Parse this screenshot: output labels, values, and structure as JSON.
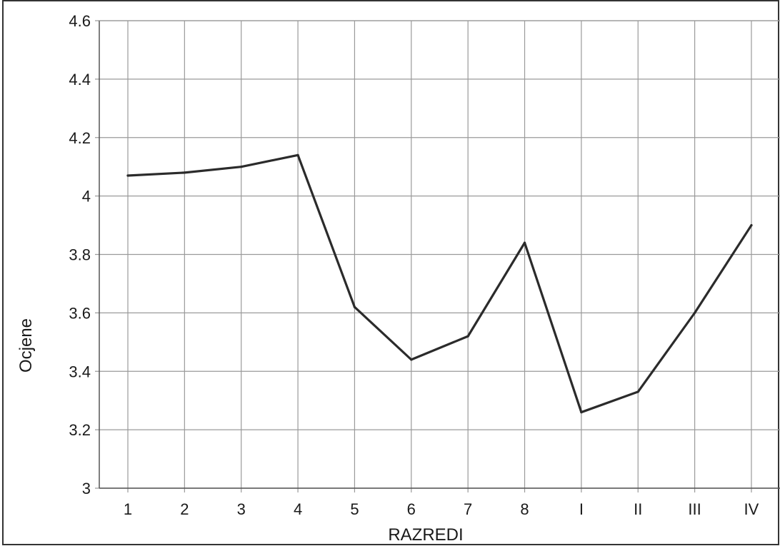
{
  "chart_data": {
    "type": "line",
    "categories": [
      "1",
      "2",
      "3",
      "4",
      "5",
      "6",
      "7",
      "8",
      "I",
      "II",
      "III",
      "IV"
    ],
    "series": [
      {
        "values": [
          4.07,
          4.08,
          4.1,
          4.14,
          3.62,
          3.44,
          3.52,
          3.84,
          3.26,
          3.33,
          3.6,
          3.9
        ]
      }
    ],
    "y_ticks": [
      "3",
      "3.2",
      "3.4",
      "3.6",
      "3.8",
      "4",
      "4.2",
      "4.4",
      "4.6"
    ],
    "ylim": [
      3,
      4.6
    ],
    "xlabel": "RAZREDI",
    "ylabel": "Ocjene",
    "grid": true,
    "line_color": "#2b2b2b",
    "grid_color": "#9a9a9a",
    "frame_color": "#333333"
  }
}
